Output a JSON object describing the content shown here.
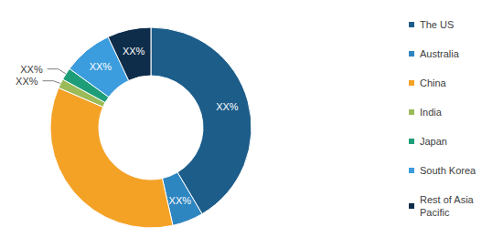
{
  "chart_data": {
    "type": "donut",
    "categories": [
      "The US",
      "Australia",
      "China",
      "India",
      "Japan",
      "South Korea",
      "Rest of Asia Pacific"
    ],
    "values": [
      41.5,
      5,
      35,
      1.5,
      2,
      8,
      7
    ],
    "value_labels": [
      "XX%",
      "XX%",
      null,
      "XX%",
      "XX%",
      "XX%",
      "XX%"
    ],
    "colors": [
      "#1c5d8a",
      "#2e86c1",
      "#f4a226",
      "#9bbb59",
      "#1e9e78",
      "#3b9ddd",
      "#0e2d4b"
    ],
    "data_labels": true,
    "legend": "right"
  }
}
